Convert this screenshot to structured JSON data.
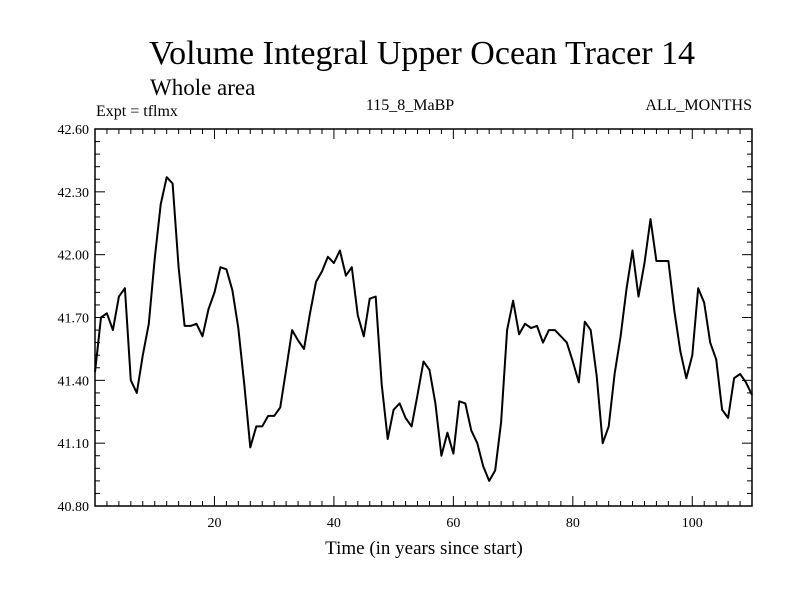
{
  "chart_data": {
    "type": "line",
    "title": "Volume Integral Upper Ocean Tracer 14",
    "subtitle": "Whole area",
    "experiment": "Expt = tflmx",
    "run": "115_8_MaBP",
    "period": "ALL_MONTHS",
    "xlabel": "Time (in years since start)",
    "ylabel": "",
    "xlim": [
      0,
      110
    ],
    "ylim": [
      40.8,
      42.6
    ],
    "xticks": [
      20,
      40,
      60,
      80,
      100
    ],
    "xtick_labels": [
      "20",
      "40",
      "60",
      "80",
      "100"
    ],
    "yticks": [
      40.8,
      41.1,
      41.4,
      41.7,
      42.0,
      42.3,
      42.6
    ],
    "ytick_labels": [
      "40.80",
      "41.10",
      "41.40",
      "41.70",
      "42.00",
      "42.30",
      "42.60"
    ],
    "grid": false,
    "series": [
      {
        "name": "Tracer 14",
        "x": [
          0,
          1,
          2,
          3,
          4,
          5,
          6,
          7,
          8,
          9,
          10,
          11,
          12,
          13,
          14,
          15,
          16,
          17,
          18,
          19,
          20,
          21,
          22,
          23,
          24,
          25,
          26,
          27,
          28,
          29,
          30,
          31,
          32,
          33,
          34,
          35,
          36,
          37,
          38,
          39,
          40,
          41,
          42,
          43,
          44,
          45,
          46,
          47,
          48,
          49,
          50,
          51,
          52,
          53,
          54,
          55,
          56,
          57,
          58,
          59,
          60,
          61,
          62,
          63,
          64,
          65,
          66,
          67,
          68,
          69,
          70,
          71,
          72,
          73,
          74,
          75,
          76,
          77,
          78,
          79,
          80,
          81,
          82,
          83,
          84,
          85,
          86,
          87,
          88,
          89,
          90,
          91,
          92,
          93,
          94,
          95,
          96,
          97,
          98,
          99,
          100,
          101,
          102,
          103,
          104,
          105,
          106,
          107,
          108,
          109,
          110
        ],
        "values": [
          41.44,
          41.7,
          41.72,
          41.64,
          41.8,
          41.84,
          41.4,
          41.34,
          41.52,
          41.67,
          41.98,
          42.24,
          42.37,
          42.34,
          41.94,
          41.66,
          41.66,
          41.67,
          41.61,
          41.74,
          41.82,
          41.94,
          41.93,
          41.83,
          41.65,
          41.38,
          41.08,
          41.18,
          41.18,
          41.23,
          41.23,
          41.27,
          41.45,
          41.64,
          41.59,
          41.55,
          41.72,
          41.87,
          41.92,
          41.99,
          41.96,
          42.02,
          41.9,
          41.94,
          41.71,
          41.61,
          41.79,
          41.8,
          41.38,
          41.12,
          41.26,
          41.29,
          41.22,
          41.18,
          41.33,
          41.49,
          41.45,
          41.29,
          41.04,
          41.15,
          41.05,
          41.3,
          41.29,
          41.16,
          41.1,
          40.99,
          40.92,
          40.97,
          41.2,
          41.64,
          41.78,
          41.62,
          41.67,
          41.65,
          41.66,
          41.58,
          41.64,
          41.64,
          41.61,
          41.58,
          41.49,
          41.39,
          41.68,
          41.64,
          41.42,
          41.1,
          41.18,
          41.43,
          41.61,
          41.84,
          42.02,
          41.8,
          41.96,
          42.17,
          41.97,
          41.97,
          41.97,
          41.73,
          41.54,
          41.41,
          41.52,
          41.84,
          41.77,
          41.58,
          41.5,
          41.26,
          41.22,
          41.41,
          41.43,
          41.39,
          41.33
        ]
      }
    ]
  }
}
